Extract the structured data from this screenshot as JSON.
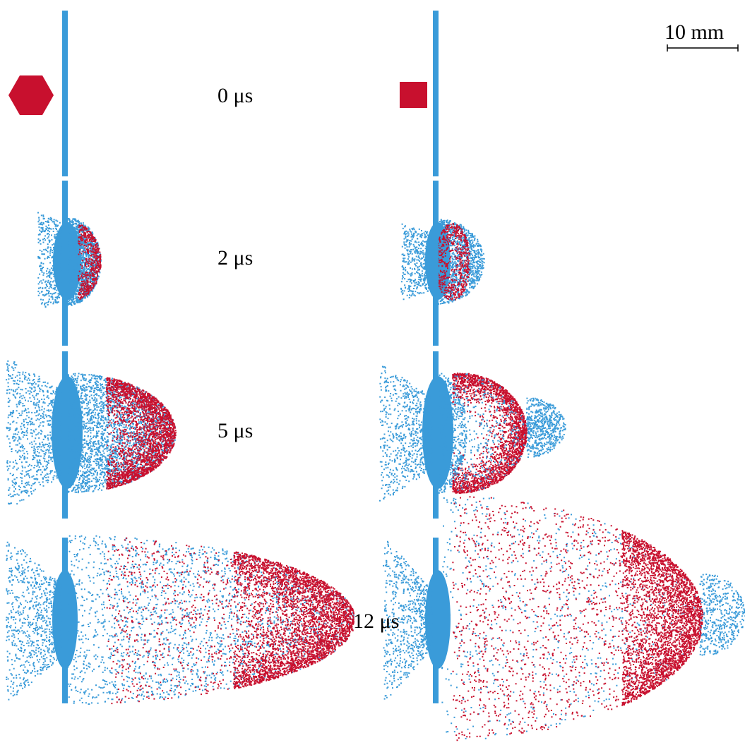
{
  "labels": [
    "0 μs",
    "2 μs",
    "5 μs",
    "12 μs"
  ],
  "scale_bar": "10 mm"
}
